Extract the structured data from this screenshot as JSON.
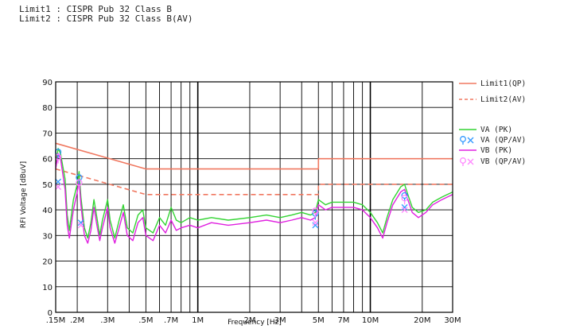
{
  "header": {
    "limit1": "Limit1 : CISPR Pub 32 Class B",
    "limit2": "Limit2 : CISPR Pub 32 Class B(AV)"
  },
  "chart_data": {
    "type": "line",
    "xlabel": "Frequency [Hz]",
    "ylabel": "RFI Voltage [dBuV]",
    "x_scale": "log",
    "xlim_mhz": [
      0.15,
      30
    ],
    "ylim": [
      0,
      90
    ],
    "yticks": [
      0,
      10,
      20,
      30,
      40,
      50,
      60,
      70,
      80,
      90
    ],
    "xtick_labels": [
      {
        "mhz": 0.15,
        "label": ".15M"
      },
      {
        "mhz": 0.2,
        "label": ".2M"
      },
      {
        "mhz": 0.3,
        "label": ".3M"
      },
      {
        "mhz": 0.5,
        "label": ".5M"
      },
      {
        "mhz": 0.7,
        "label": ".7M"
      },
      {
        "mhz": 1,
        "label": "1M"
      },
      {
        "mhz": 2,
        "label": "2M"
      },
      {
        "mhz": 3,
        "label": "3M"
      },
      {
        "mhz": 5,
        "label": "5M"
      },
      {
        "mhz": 7,
        "label": "7M"
      },
      {
        "mhz": 10,
        "label": "10M"
      },
      {
        "mhz": 20,
        "label": "20M"
      },
      {
        "mhz": 30,
        "label": "30M"
      }
    ],
    "grid": true,
    "legend_position": "right",
    "series": [
      {
        "name": "Limit1(QP)",
        "color": "#f07860",
        "dash": "solid",
        "points": [
          [
            0.15,
            66
          ],
          [
            0.5,
            56
          ],
          [
            5,
            56
          ],
          [
            5,
            60
          ],
          [
            30,
            60
          ]
        ]
      },
      {
        "name": "Limit2(AV)",
        "color": "#f07860",
        "dash": "dashed",
        "points": [
          [
            0.15,
            56
          ],
          [
            0.5,
            46
          ],
          [
            5,
            46
          ],
          [
            5,
            50
          ],
          [
            30,
            50
          ]
        ]
      },
      {
        "name": "VA (PK)",
        "color": "#33d433",
        "dash": "solid",
        "points": [
          [
            0.15,
            58
          ],
          [
            0.155,
            64
          ],
          [
            0.16,
            62
          ],
          [
            0.17,
            52
          ],
          [
            0.175,
            38
          ],
          [
            0.18,
            32
          ],
          [
            0.19,
            44
          ],
          [
            0.2,
            50
          ],
          [
            0.205,
            55
          ],
          [
            0.21,
            45
          ],
          [
            0.22,
            33
          ],
          [
            0.23,
            29
          ],
          [
            0.24,
            35
          ],
          [
            0.25,
            44
          ],
          [
            0.26,
            37
          ],
          [
            0.27,
            30
          ],
          [
            0.28,
            36
          ],
          [
            0.3,
            44
          ],
          [
            0.31,
            36
          ],
          [
            0.33,
            29
          ],
          [
            0.35,
            36
          ],
          [
            0.37,
            42
          ],
          [
            0.39,
            33
          ],
          [
            0.42,
            31
          ],
          [
            0.45,
            38
          ],
          [
            0.48,
            40
          ],
          [
            0.5,
            33
          ],
          [
            0.55,
            31
          ],
          [
            0.6,
            37
          ],
          [
            0.65,
            34
          ],
          [
            0.7,
            41
          ],
          [
            0.75,
            36
          ],
          [
            0.8,
            35
          ],
          [
            0.9,
            37
          ],
          [
            1.0,
            36
          ],
          [
            1.2,
            37
          ],
          [
            1.5,
            36
          ],
          [
            2,
            37
          ],
          [
            2.5,
            38
          ],
          [
            3,
            37
          ],
          [
            3.5,
            38
          ],
          [
            4,
            39
          ],
          [
            4.5,
            38
          ],
          [
            4.8,
            39
          ],
          [
            5,
            44
          ],
          [
            5.5,
            42
          ],
          [
            6,
            43
          ],
          [
            7,
            43
          ],
          [
            8,
            43
          ],
          [
            9,
            42
          ],
          [
            10,
            39
          ],
          [
            11,
            35
          ],
          [
            11.8,
            31
          ],
          [
            12.5,
            37
          ],
          [
            13.5,
            44
          ],
          [
            15,
            49
          ],
          [
            15.8,
            50
          ],
          [
            16.5,
            46
          ],
          [
            17.5,
            41
          ],
          [
            19,
            39
          ],
          [
            21,
            40
          ],
          [
            23,
            43
          ],
          [
            26,
            45
          ],
          [
            30,
            47
          ]
        ]
      },
      {
        "name": "VB (PK)",
        "color": "#e020e0",
        "dash": "solid",
        "points": [
          [
            0.15,
            56
          ],
          [
            0.155,
            62
          ],
          [
            0.16,
            60
          ],
          [
            0.17,
            48
          ],
          [
            0.175,
            34
          ],
          [
            0.18,
            29
          ],
          [
            0.19,
            40
          ],
          [
            0.2,
            47
          ],
          [
            0.205,
            52
          ],
          [
            0.21,
            42
          ],
          [
            0.22,
            30
          ],
          [
            0.23,
            27
          ],
          [
            0.24,
            32
          ],
          [
            0.25,
            41
          ],
          [
            0.26,
            34
          ],
          [
            0.27,
            28
          ],
          [
            0.28,
            33
          ],
          [
            0.3,
            41
          ],
          [
            0.31,
            33
          ],
          [
            0.33,
            27
          ],
          [
            0.35,
            33
          ],
          [
            0.37,
            39
          ],
          [
            0.39,
            30
          ],
          [
            0.42,
            28
          ],
          [
            0.45,
            35
          ],
          [
            0.48,
            37
          ],
          [
            0.5,
            30
          ],
          [
            0.55,
            28
          ],
          [
            0.6,
            34
          ],
          [
            0.65,
            31
          ],
          [
            0.7,
            36
          ],
          [
            0.75,
            32
          ],
          [
            0.8,
            33
          ],
          [
            0.9,
            34
          ],
          [
            1.0,
            33
          ],
          [
            1.2,
            35
          ],
          [
            1.5,
            34
          ],
          [
            2,
            35
          ],
          [
            2.5,
            36
          ],
          [
            3,
            35
          ],
          [
            3.5,
            36
          ],
          [
            4,
            37
          ],
          [
            4.5,
            36
          ],
          [
            4.8,
            37
          ],
          [
            5,
            42
          ],
          [
            5.5,
            40
          ],
          [
            6,
            41
          ],
          [
            7,
            41
          ],
          [
            8,
            41
          ],
          [
            9,
            40
          ],
          [
            10,
            37
          ],
          [
            11,
            33
          ],
          [
            11.8,
            29
          ],
          [
            12.5,
            35
          ],
          [
            13.5,
            42
          ],
          [
            15,
            47
          ],
          [
            15.8,
            48
          ],
          [
            16.5,
            44
          ],
          [
            17.5,
            39
          ],
          [
            19,
            37
          ],
          [
            21,
            39
          ],
          [
            23,
            42
          ],
          [
            26,
            44
          ],
          [
            30,
            46
          ]
        ]
      }
    ],
    "markers": [
      {
        "series": "VA (QP/AV)",
        "color": "#3399ff",
        "points_qp": [
          [
            0.155,
            62
          ],
          [
            0.205,
            52
          ],
          [
            4.8,
            38
          ],
          [
            15.8,
            45
          ]
        ],
        "points_av": [
          [
            0.155,
            51
          ],
          [
            0.21,
            35
          ],
          [
            4.8,
            34
          ],
          [
            15.8,
            41
          ]
        ]
      },
      {
        "series": "VB (QP/AV)",
        "color": "#ff88ff",
        "points_qp": [
          [
            0.155,
            60
          ],
          [
            0.205,
            50
          ],
          [
            4.8,
            39
          ],
          [
            15.8,
            44
          ]
        ],
        "points_av": [
          [
            0.155,
            49
          ],
          [
            0.21,
            34
          ],
          [
            4.8,
            35
          ],
          [
            15.8,
            40
          ]
        ]
      }
    ],
    "legend": [
      {
        "label": "Limit1(QP)",
        "color": "#f07860",
        "style": "solid"
      },
      {
        "label": "Limit2(AV)",
        "color": "#f07860",
        "style": "dashed"
      },
      {
        "label": "VA (PK)",
        "color": "#33d433",
        "style": "solid"
      },
      {
        "label": "VA (QP/AV)",
        "color": "#3399ff",
        "style": "markers"
      },
      {
        "label": "VB (PK)",
        "color": "#e020e0",
        "style": "solid"
      },
      {
        "label": "VB (QP/AV)",
        "color": "#ff88ff",
        "style": "markers"
      }
    ]
  }
}
